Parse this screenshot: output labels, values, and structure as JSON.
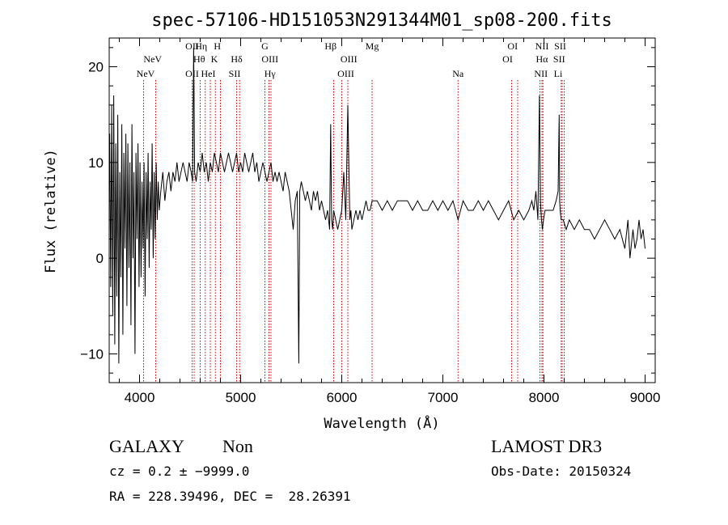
{
  "chart_data": {
    "type": "line",
    "title": "spec-57106-HD151053N291344M01_sp08-200.fits",
    "xlabel": "Wavelength (Å)",
    "ylabel": "Flux (relative)",
    "xlim": [
      3700,
      9100
    ],
    "ylim": [
      -13,
      23
    ],
    "xticks": [
      4000,
      5000,
      6000,
      7000,
      8000,
      9000
    ],
    "yticks": [
      -10,
      0,
      10,
      20
    ],
    "grid": false,
    "legend": "none",
    "series_color": "#000000",
    "line_color": "#cc0000",
    "series": [
      {
        "x": [
          3705,
          3715,
          3725,
          3735,
          3745,
          3755,
          3765,
          3775,
          3785,
          3795,
          3805,
          3815,
          3825,
          3835,
          3845,
          3855,
          3865,
          3875,
          3885,
          3895,
          3905,
          3915,
          3925,
          3935,
          3945,
          3955,
          3965,
          3975,
          3985,
          3995,
          4005,
          4015,
          4025,
          4035,
          4045,
          4055,
          4065,
          4075,
          4085,
          4095,
          4105,
          4115,
          4125,
          4135,
          4145,
          4155,
          4165,
          4175,
          4185,
          4195,
          4210,
          4230,
          4250,
          4270,
          4290,
          4310,
          4330,
          4350,
          4370,
          4390,
          4410,
          4430,
          4450,
          4470,
          4490,
          4510,
          4525,
          4535,
          4545,
          4560,
          4580,
          4600,
          4620,
          4640,
          4660,
          4680,
          4700,
          4720,
          4740,
          4760,
          4780,
          4800,
          4820,
          4840,
          4860,
          4880,
          4900,
          4920,
          4940,
          4960,
          4980,
          5000,
          5020,
          5040,
          5060,
          5080,
          5100,
          5120,
          5140,
          5160,
          5180,
          5200,
          5220,
          5240,
          5260,
          5280,
          5300,
          5320,
          5340,
          5360,
          5380,
          5400,
          5420,
          5440,
          5460,
          5480,
          5500,
          5520,
          5540,
          5560,
          5575,
          5585,
          5600,
          5620,
          5640,
          5660,
          5680,
          5700,
          5720,
          5740,
          5760,
          5780,
          5800,
          5820,
          5840,
          5860,
          5880,
          5890,
          5900,
          5910,
          5920,
          5940,
          5960,
          5980,
          6000,
          6020,
          6040,
          6060,
          6080,
          6090,
          6100,
          6120,
          6140,
          6160,
          6180,
          6200,
          6220,
          6240,
          6260,
          6280,
          6300,
          6350,
          6400,
          6450,
          6500,
          6550,
          6600,
          6650,
          6700,
          6750,
          6800,
          6850,
          6900,
          6950,
          7000,
          7050,
          7100,
          7150,
          7200,
          7250,
          7300,
          7350,
          7400,
          7450,
          7500,
          7550,
          7600,
          7650,
          7700,
          7750,
          7800,
          7850,
          7880,
          7900,
          7920,
          7940,
          7955,
          7965,
          7975,
          7985,
          7995,
          8010,
          8030,
          8060,
          8090,
          8120,
          8140,
          8150,
          8155,
          8160,
          8170,
          8190,
          8220,
          8250,
          8300,
          8350,
          8400,
          8450,
          8500,
          8550,
          8600,
          8650,
          8700,
          8750,
          8800,
          8830,
          8850,
          8880,
          8900,
          8920,
          8940,
          8960,
          8980,
          9000
        ],
        "y": [
          13,
          -3,
          16,
          -6,
          17,
          -9,
          12,
          -4,
          15,
          -11,
          9,
          -2,
          14,
          -8,
          11,
          1,
          13,
          -5,
          12,
          -1,
          10,
          -7,
          14,
          0,
          9,
          -10,
          11,
          2,
          12,
          -3,
          10,
          -2,
          8,
          1,
          10,
          -4,
          9,
          2,
          11,
          -1,
          8,
          3,
          12,
          0,
          9,
          2,
          10,
          4,
          8,
          5,
          7,
          9,
          6,
          8,
          9,
          7,
          9,
          8,
          10,
          8,
          9,
          10,
          9,
          8,
          10,
          9,
          8,
          22,
          9,
          8,
          10,
          9,
          11,
          9,
          10,
          8,
          10,
          9,
          11,
          10,
          9,
          11,
          10,
          9,
          10,
          11,
          10,
          9,
          10,
          11,
          9,
          10,
          9,
          11,
          10,
          9,
          10,
          11,
          9,
          10,
          8,
          9,
          10,
          9,
          8,
          9,
          10,
          8,
          9,
          8,
          9,
          8,
          7,
          9,
          8,
          7,
          5,
          3,
          6,
          7,
          -11,
          7,
          8,
          7,
          6,
          7,
          6,
          5,
          7,
          6,
          7,
          5,
          6,
          5,
          4,
          5,
          3,
          14,
          4,
          3,
          5,
          4,
          3,
          4,
          5,
          9,
          4,
          16,
          4,
          5,
          3,
          4,
          5,
          4,
          5,
          4,
          5,
          6,
          5,
          5,
          6,
          6,
          5,
          6,
          5,
          6,
          6,
          6,
          5,
          6,
          5,
          5,
          6,
          5,
          6,
          5,
          6,
          4,
          6,
          5,
          5,
          6,
          5,
          6,
          5,
          4,
          5,
          6,
          4,
          5,
          4,
          5,
          6,
          5,
          7,
          4,
          17,
          6,
          4,
          3,
          4,
          5,
          5,
          5,
          5,
          6,
          7,
          15,
          6,
          5,
          4,
          4,
          3,
          4,
          3,
          4,
          3,
          3,
          2,
          3,
          4,
          3,
          2,
          3,
          1,
          4,
          0,
          3,
          1,
          2,
          4,
          2,
          3,
          1
        ]
      }
    ],
    "line_labels": [
      {
        "text": "NeV",
        "x": 4060,
        "row": 2
      },
      {
        "text": "NeV",
        "x": 4130,
        "row": 1
      },
      {
        "text": "OII",
        "x": 4520,
        "row": 0
      },
      {
        "text": "OII",
        "x": 4520,
        "row": 2
      },
      {
        "text": "Hη",
        "x": 4610,
        "row": 0
      },
      {
        "text": "Hθ",
        "x": 4590,
        "row": 1
      },
      {
        "text": "HeI",
        "x": 4680,
        "row": 2
      },
      {
        "text": "H",
        "x": 4770,
        "row": 0
      },
      {
        "text": "K",
        "x": 4740,
        "row": 1
      },
      {
        "text": "Hδ",
        "x": 4960,
        "row": 1
      },
      {
        "text": "SII",
        "x": 4940,
        "row": 2
      },
      {
        "text": "G",
        "x": 5240,
        "row": 0
      },
      {
        "text": "OIII",
        "x": 5290,
        "row": 1
      },
      {
        "text": "Hγ",
        "x": 5290,
        "row": 2
      },
      {
        "text": "Hβ",
        "x": 5890,
        "row": 0
      },
      {
        "text": "OIII",
        "x": 6070,
        "row": 1
      },
      {
        "text": "OIII",
        "x": 6040,
        "row": 2
      },
      {
        "text": "Mg",
        "x": 6300,
        "row": 0
      },
      {
        "text": "Na",
        "x": 7150,
        "row": 2
      },
      {
        "text": "OI",
        "x": 7690,
        "row": 0
      },
      {
        "text": "OI",
        "x": 7640,
        "row": 1
      },
      {
        "text": "NII",
        "x": 7980,
        "row": 0
      },
      {
        "text": "Hα",
        "x": 7980,
        "row": 1
      },
      {
        "text": "NII",
        "x": 7970,
        "row": 2
      },
      {
        "text": "SII",
        "x": 8160,
        "row": 0
      },
      {
        "text": "SII",
        "x": 8150,
        "row": 1
      },
      {
        "text": "Li",
        "x": 8140,
        "row": 2
      }
    ],
    "line_positions": [
      4040,
      4160,
      4520,
      4540,
      4600,
      4650,
      4700,
      4750,
      4800,
      4960,
      4990,
      5240,
      5280,
      5300,
      5920,
      6000,
      6060,
      6300,
      7150,
      7680,
      7740,
      7960,
      7980,
      7990,
      8170,
      8180,
      8200
    ]
  },
  "footer": {
    "object_class": "GALAXY",
    "subclass": "Non",
    "survey": "LAMOST DR3",
    "redshift": "cz = 0.2 ± −9999.0",
    "obs_date": "Obs-Date: 20150324",
    "coords": "RA = 228.39496, DEC =  28.26391"
  }
}
